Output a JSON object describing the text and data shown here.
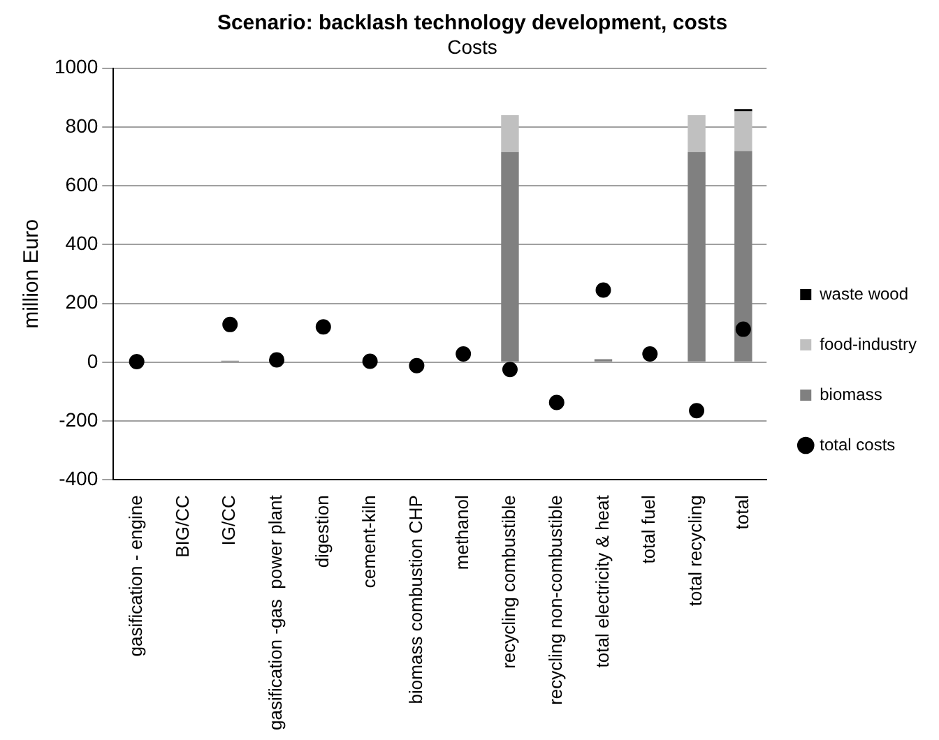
{
  "chart_data": {
    "type": "bar",
    "title": "Scenario: backlash technology development, costs",
    "subtitle": "Costs",
    "ylabel": "million Euro",
    "categories": [
      "gasification - engine",
      "BIG/CC",
      "IG/CC",
      "gasification -gas  power plant",
      "digestion",
      "cement-kiln",
      "biomass combustion CHP",
      "methanol",
      "recycling combustible",
      "recycling non-combustible",
      "total electricity & heat",
      "total fuel",
      "total recycling",
      "total"
    ],
    "stacked": true,
    "series": [
      {
        "name": "biomass",
        "color": "#808080",
        "values": [
          0,
          0,
          5,
          0,
          0,
          0,
          0,
          0,
          715,
          0,
          10,
          0,
          715,
          718
        ]
      },
      {
        "name": "food-industry",
        "color": "#c0c0c0",
        "values": [
          0,
          0,
          0,
          0,
          0,
          0,
          0,
          0,
          125,
          0,
          0,
          0,
          125,
          135
        ]
      },
      {
        "name": "waste wood",
        "color": "#000000",
        "values": [
          0,
          0,
          0,
          0,
          0,
          0,
          0,
          0,
          0,
          0,
          0,
          0,
          0,
          8
        ]
      },
      {
        "name": "total costs",
        "type": "scatter",
        "color": "#000000",
        "x": [
          "gasification - engine",
          "BIG/CC",
          "IG/CC",
          "gasification -gas  power plant",
          "digestion",
          "cement-kiln",
          "biomass combustion CHP",
          "methanol",
          "recycling combustible",
          "recycling non-combustible",
          "total electricity & heat",
          "total fuel",
          "total recycling",
          "total"
        ],
        "values": [
          2,
          null,
          128,
          8,
          120,
          3,
          -12,
          28,
          -25,
          -137,
          245,
          28,
          -165,
          112
        ]
      }
    ],
    "ylim": [
      -400,
      1000
    ],
    "yticks": [
      -400,
      -200,
      0,
      200,
      400,
      600,
      800,
      1000
    ],
    "grid": "y",
    "legend": "right",
    "marker": "circle"
  }
}
